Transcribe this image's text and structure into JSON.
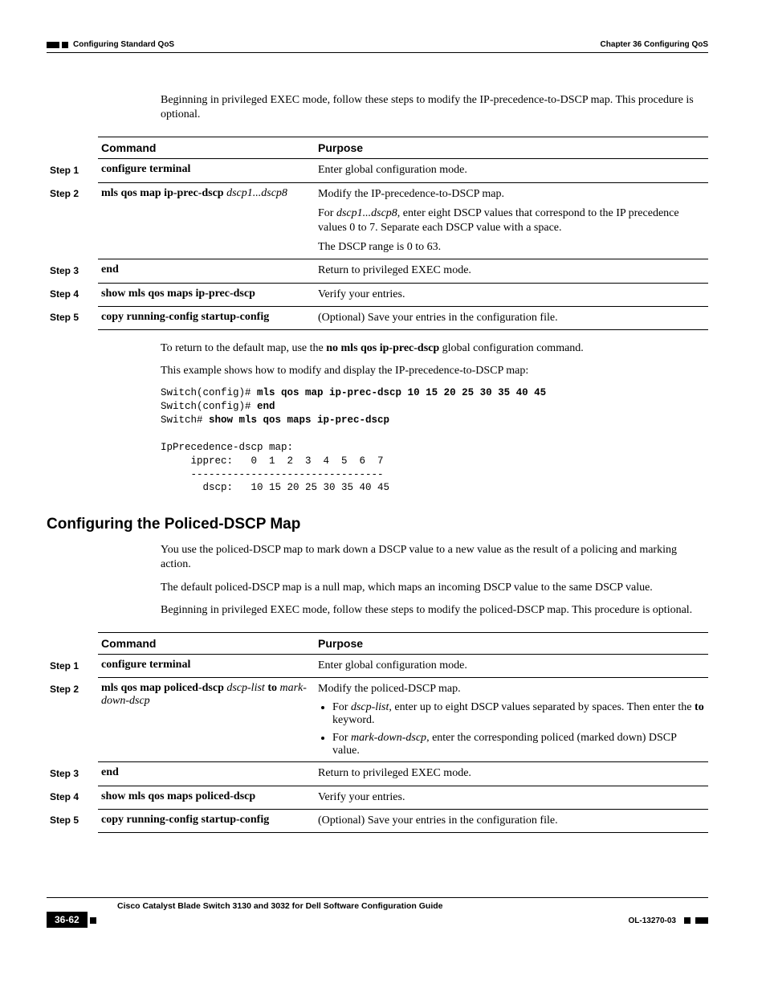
{
  "header": {
    "chapter": "Chapter 36    Configuring QoS",
    "section": "Configuring Standard QoS"
  },
  "intro1": "Beginning in privileged EXEC mode, follow these steps to modify the IP-precedence-to-DSCP map. This procedure is optional.",
  "table1": {
    "head_command": "Command",
    "head_purpose": "Purpose",
    "rows": [
      {
        "step": "Step 1",
        "cmd_html": "<b>configure terminal</b>",
        "purpose_html": "<p>Enter global configuration mode.</p>"
      },
      {
        "step": "Step 2",
        "cmd_html": "<b>mls qos map ip-prec-dscp</b> <i>dscp1...dscp8</i>",
        "purpose_html": "<p>Modify the IP-precedence-to-DSCP map.</p><p>For <i>dscp1...dscp8</i>, enter eight DSCP values that correspond to the IP precedence values 0 to 7. Separate each DSCP value with a space.</p><p>The DSCP range is 0 to 63.</p>"
      },
      {
        "step": "Step 3",
        "cmd_html": "<b>end</b>",
        "purpose_html": "<p>Return to privileged EXEC mode.</p>"
      },
      {
        "step": "Step 4",
        "cmd_html": "<b>show mls qos maps ip-prec-dscp</b>",
        "purpose_html": "<p>Verify your entries.</p>"
      },
      {
        "step": "Step 5",
        "cmd_html": "<b>copy running-config startup-config</b>",
        "purpose_html": "<p>(Optional) Save your entries in the configuration file.</p>"
      }
    ]
  },
  "after1_p1_html": "To return to the default map, use the <b>no mls qos ip-prec-dscp</b> global configuration command.",
  "after1_p2": "This example shows how to modify and display the IP-precedence-to-DSCP map:",
  "terminal_html": "Switch(config)# <b>mls qos map ip-prec-dscp 10 15 20 25 30 35 40 45</b>\nSwitch(config)# <b>end</b>\nSwitch# <b>show mls qos maps ip-prec-dscp</b>\n\nIpPrecedence-dscp map:\n     ipprec:   0  1  2  3  4  5  6  7\n     --------------------------------\n       dscp:   10 15 20 25 30 35 40 45",
  "section2_title": "Configuring the Policed-DSCP Map",
  "sec2_p1": "You use the policed-DSCP map to mark down a DSCP value to a new value as the result of a policing and marking action.",
  "sec2_p2": "The default policed-DSCP map is a null map, which maps an incoming DSCP value to the same DSCP value.",
  "sec2_p3": "Beginning in privileged EXEC mode, follow these steps to modify the policed-DSCP map. This procedure is optional.",
  "table2": {
    "head_command": "Command",
    "head_purpose": "Purpose",
    "rows": [
      {
        "step": "Step 1",
        "cmd_html": "<b>configure terminal</b>",
        "purpose_html": "<p>Enter global configuration mode.</p>"
      },
      {
        "step": "Step 2",
        "cmd_html": "<b>mls qos map policed-dscp</b> <i>dscp-list</i> <b>to</b> <i>mark-down-dscp</i>",
        "purpose_html": "<p>Modify the policed-DSCP map.</p><ul><li>For <i>dscp-list</i>, enter up to eight DSCP values separated by spaces. Then enter the <b>to</b> keyword.</li><li>For <i>mark-down-dscp</i>, enter the corresponding policed (marked down) DSCP value.</li></ul>"
      },
      {
        "step": "Step 3",
        "cmd_html": "<b>end</b>",
        "purpose_html": "<p>Return to privileged EXEC mode.</p>"
      },
      {
        "step": "Step 4",
        "cmd_html": "<b>show mls qos maps policed-dscp</b>",
        "purpose_html": "<p>Verify your entries.</p>"
      },
      {
        "step": "Step 5",
        "cmd_html": "<b>copy running-config startup-config</b>",
        "purpose_html": "<p>(Optional) Save your entries in the configuration file.</p>"
      }
    ]
  },
  "footer": {
    "book": "Cisco Catalyst Blade Switch 3130 and 3032 for Dell Software Configuration Guide",
    "page": "36-62",
    "docid": "OL-13270-03"
  }
}
